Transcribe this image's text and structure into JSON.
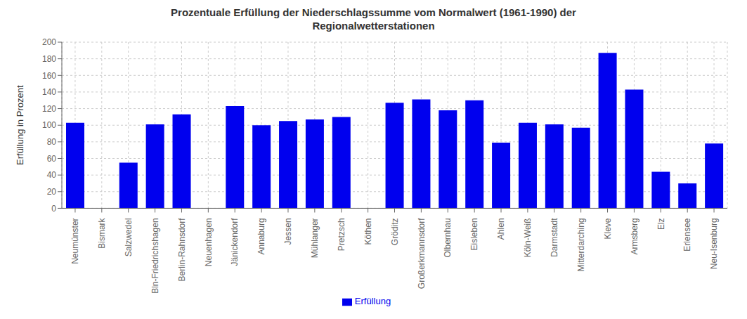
{
  "chart_data": {
    "type": "bar",
    "title": "Prozentuale Erfüllung der Niederschlagssumme vom Normalwert (1961-1990) der\nRegionalwetterstationen",
    "ylabel": "Erfüllung in Prozent",
    "categories": [
      "Neumünster",
      "Bismark",
      "Salzwedel",
      "Bln-Friedrichshagen",
      "Berlin-Rahnsdorf",
      "Neuenhagen",
      "Jänickendorf",
      "Annaburg",
      "Jessen",
      "Mühlanger",
      "Pretzsch",
      "Köthen",
      "Gröditz",
      "Großerkmannsdorf",
      "Olbernhau",
      "Eisleben",
      "Ahlen",
      "Köln-Weiß",
      "Darmstadt",
      "Mitterdarching",
      "Kleve",
      "Armsberg",
      "Elz",
      "Erlensee",
      "Neu-Isenburg"
    ],
    "series": [
      {
        "name": "Erfüllung",
        "color": "#0000EE",
        "values": [
          103,
          0,
          55,
          101,
          113,
          0,
          123,
          100,
          105,
          107,
          110,
          0,
          127,
          131,
          118,
          130,
          79,
          103,
          101,
          97,
          187,
          143,
          44,
          30,
          78
        ]
      }
    ],
    "ylim": [
      0,
      200
    ],
    "yticks": [
      0,
      20,
      40,
      60,
      80,
      100,
      120,
      140,
      160,
      180,
      200
    ],
    "grid": true,
    "legend": "bottom"
  }
}
